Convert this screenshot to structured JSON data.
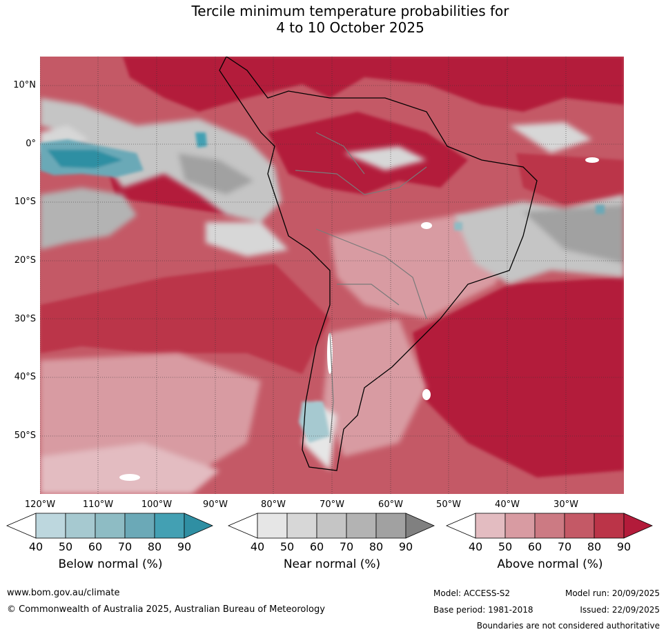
{
  "title": {
    "line1": "Tercile minimum temperature probabilities for",
    "line2": "4 to 10 October 2025"
  },
  "axes": {
    "lat_labels": [
      "10°N",
      "0°",
      "10°S",
      "20°S",
      "30°S",
      "40°S",
      "50°S"
    ],
    "lon_labels": [
      "120°W",
      "110°W",
      "100°W",
      "90°W",
      "80°W",
      "70°W",
      "60°W",
      "50°W",
      "40°W",
      "30°W"
    ]
  },
  "colorbars": [
    {
      "title": "Below normal (%)",
      "ticks": [
        "40",
        "50",
        "60",
        "70",
        "80",
        "90"
      ],
      "colors": [
        "#ffffff",
        "#bdd7de",
        "#a6c9d0",
        "#8ebcc4",
        "#6ba9b7",
        "#43a0b3",
        "#2f8fa3"
      ]
    },
    {
      "title": "Near normal (%)",
      "ticks": [
        "40",
        "50",
        "60",
        "70",
        "80",
        "90"
      ],
      "colors": [
        "#ffffff",
        "#e6e6e6",
        "#d7d7d7",
        "#c5c5c5",
        "#b3b3b3",
        "#a1a1a1",
        "#808080"
      ]
    },
    {
      "title": "Above normal (%)",
      "ticks": [
        "40",
        "50",
        "60",
        "70",
        "80",
        "90"
      ],
      "colors": [
        "#ffffff",
        "#e3bcc1",
        "#d89ba2",
        "#cc7a83",
        "#c45966",
        "#bb3448",
        "#b31b3a"
      ]
    }
  ],
  "footer": {
    "website": "www.bom.gov.au/climate",
    "copyright": "© Commonwealth of Australia 2025, Australian Bureau of Meteorology",
    "model": "Model: ACCESS-S2",
    "base_period": "Base period: 1981-2018",
    "model_run": "Model run: 20/09/2025",
    "issued": "Issued: 22/09/2025",
    "disclaimer": "Boundaries are not considered authoritative"
  }
}
